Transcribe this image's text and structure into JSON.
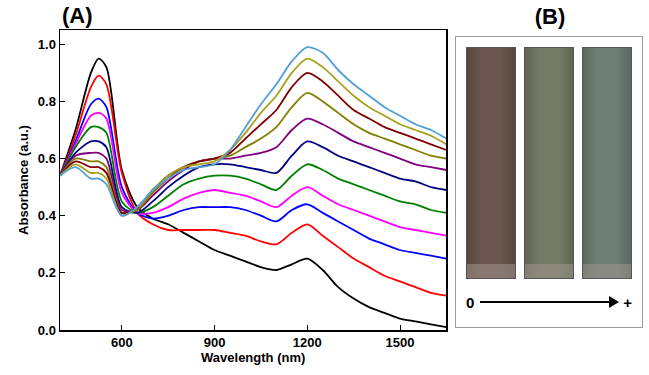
{
  "chart_data": {
    "type": "line",
    "panel_label": "(A)",
    "x_label": "Wavelength (nm)",
    "y_label": "Absorbance (a.u.)",
    "x": [
      400,
      450,
      500,
      525,
      550,
      600,
      650,
      700,
      750,
      800,
      850,
      900,
      950,
      1000,
      1050,
      1100,
      1150,
      1200,
      1250,
      1300,
      1350,
      1400,
      1450,
      1500,
      1550,
      1600,
      1650
    ],
    "series": [
      {
        "color": "#000000",
        "values": [
          0.54,
          0.7,
          0.9,
          0.95,
          0.92,
          0.56,
          0.43,
          0.39,
          0.37,
          0.34,
          0.31,
          0.28,
          0.26,
          0.24,
          0.22,
          0.21,
          0.23,
          0.25,
          0.21,
          0.15,
          0.11,
          0.08,
          0.06,
          0.04,
          0.03,
          0.02,
          0.01
        ]
      },
      {
        "color": "#ff0000",
        "values": [
          0.54,
          0.68,
          0.85,
          0.89,
          0.86,
          0.55,
          0.41,
          0.37,
          0.35,
          0.35,
          0.35,
          0.35,
          0.34,
          0.33,
          0.31,
          0.3,
          0.34,
          0.37,
          0.33,
          0.29,
          0.25,
          0.22,
          0.19,
          0.17,
          0.15,
          0.13,
          0.12
        ]
      },
      {
        "color": "#0000ff",
        "values": [
          0.54,
          0.66,
          0.79,
          0.81,
          0.78,
          0.5,
          0.41,
          0.39,
          0.4,
          0.42,
          0.43,
          0.43,
          0.43,
          0.42,
          0.4,
          0.38,
          0.42,
          0.44,
          0.41,
          0.38,
          0.35,
          0.32,
          0.3,
          0.28,
          0.27,
          0.26,
          0.25
        ]
      },
      {
        "color": "#ff00ff",
        "values": [
          0.54,
          0.65,
          0.75,
          0.76,
          0.74,
          0.48,
          0.41,
          0.41,
          0.43,
          0.46,
          0.48,
          0.49,
          0.48,
          0.47,
          0.45,
          0.43,
          0.47,
          0.5,
          0.47,
          0.44,
          0.42,
          0.4,
          0.38,
          0.36,
          0.35,
          0.34,
          0.33
        ]
      },
      {
        "color": "#008000",
        "values": [
          0.54,
          0.64,
          0.71,
          0.71,
          0.69,
          0.45,
          0.41,
          0.43,
          0.47,
          0.51,
          0.53,
          0.54,
          0.54,
          0.53,
          0.51,
          0.49,
          0.54,
          0.58,
          0.56,
          0.53,
          0.51,
          0.49,
          0.47,
          0.45,
          0.44,
          0.42,
          0.41
        ]
      },
      {
        "color": "#000080",
        "values": [
          0.54,
          0.62,
          0.66,
          0.66,
          0.64,
          0.43,
          0.41,
          0.45,
          0.5,
          0.54,
          0.57,
          0.58,
          0.58,
          0.57,
          0.56,
          0.55,
          0.61,
          0.66,
          0.64,
          0.61,
          0.59,
          0.57,
          0.55,
          0.53,
          0.52,
          0.5,
          0.49
        ]
      },
      {
        "color": "#800080",
        "values": [
          0.54,
          0.61,
          0.62,
          0.62,
          0.6,
          0.42,
          0.42,
          0.47,
          0.52,
          0.56,
          0.59,
          0.6,
          0.6,
          0.61,
          0.62,
          0.64,
          0.7,
          0.74,
          0.72,
          0.69,
          0.66,
          0.64,
          0.62,
          0.6,
          0.58,
          0.57,
          0.56
        ]
      },
      {
        "color": "#808000",
        "values": [
          0.54,
          0.6,
          0.59,
          0.59,
          0.57,
          0.41,
          0.42,
          0.48,
          0.53,
          0.57,
          0.59,
          0.6,
          0.61,
          0.64,
          0.67,
          0.71,
          0.78,
          0.83,
          0.8,
          0.76,
          0.72,
          0.69,
          0.67,
          0.65,
          0.63,
          0.61,
          0.6
        ]
      },
      {
        "color": "#800000",
        "values": [
          0.54,
          0.59,
          0.57,
          0.57,
          0.55,
          0.41,
          0.43,
          0.49,
          0.54,
          0.57,
          0.59,
          0.6,
          0.62,
          0.67,
          0.72,
          0.77,
          0.85,
          0.9,
          0.87,
          0.82,
          0.77,
          0.74,
          0.71,
          0.69,
          0.67,
          0.65,
          0.63
        ]
      },
      {
        "color": "#a8a020",
        "values": [
          0.54,
          0.58,
          0.55,
          0.55,
          0.53,
          0.4,
          0.43,
          0.49,
          0.54,
          0.57,
          0.58,
          0.59,
          0.63,
          0.69,
          0.76,
          0.82,
          0.9,
          0.95,
          0.92,
          0.87,
          0.82,
          0.78,
          0.75,
          0.72,
          0.7,
          0.68,
          0.65
        ]
      },
      {
        "color": "#4f9fd8",
        "values": [
          0.54,
          0.57,
          0.53,
          0.53,
          0.51,
          0.4,
          0.43,
          0.49,
          0.53,
          0.56,
          0.57,
          0.58,
          0.63,
          0.71,
          0.79,
          0.86,
          0.94,
          0.99,
          0.97,
          0.91,
          0.86,
          0.82,
          0.78,
          0.75,
          0.72,
          0.7,
          0.67
        ]
      }
    ],
    "xlim": [
      400,
      1650
    ],
    "xticks": [
      600,
      900,
      1200,
      1500
    ],
    "ylim": [
      0,
      1.05
    ],
    "yticks": [
      {
        "value": 0,
        "label": "0.0"
      },
      0.2,
      0.4,
      0.6,
      0.8,
      {
        "value": 1,
        "label": "1.0"
      }
    ],
    "grid": false,
    "line_style": "solid"
  },
  "inset": {
    "panel_label": "(B)",
    "colors": [
      "#6b5650",
      "#737b67",
      "#6d7f75"
    ],
    "scale_start": "0",
    "scale_end": "+"
  }
}
